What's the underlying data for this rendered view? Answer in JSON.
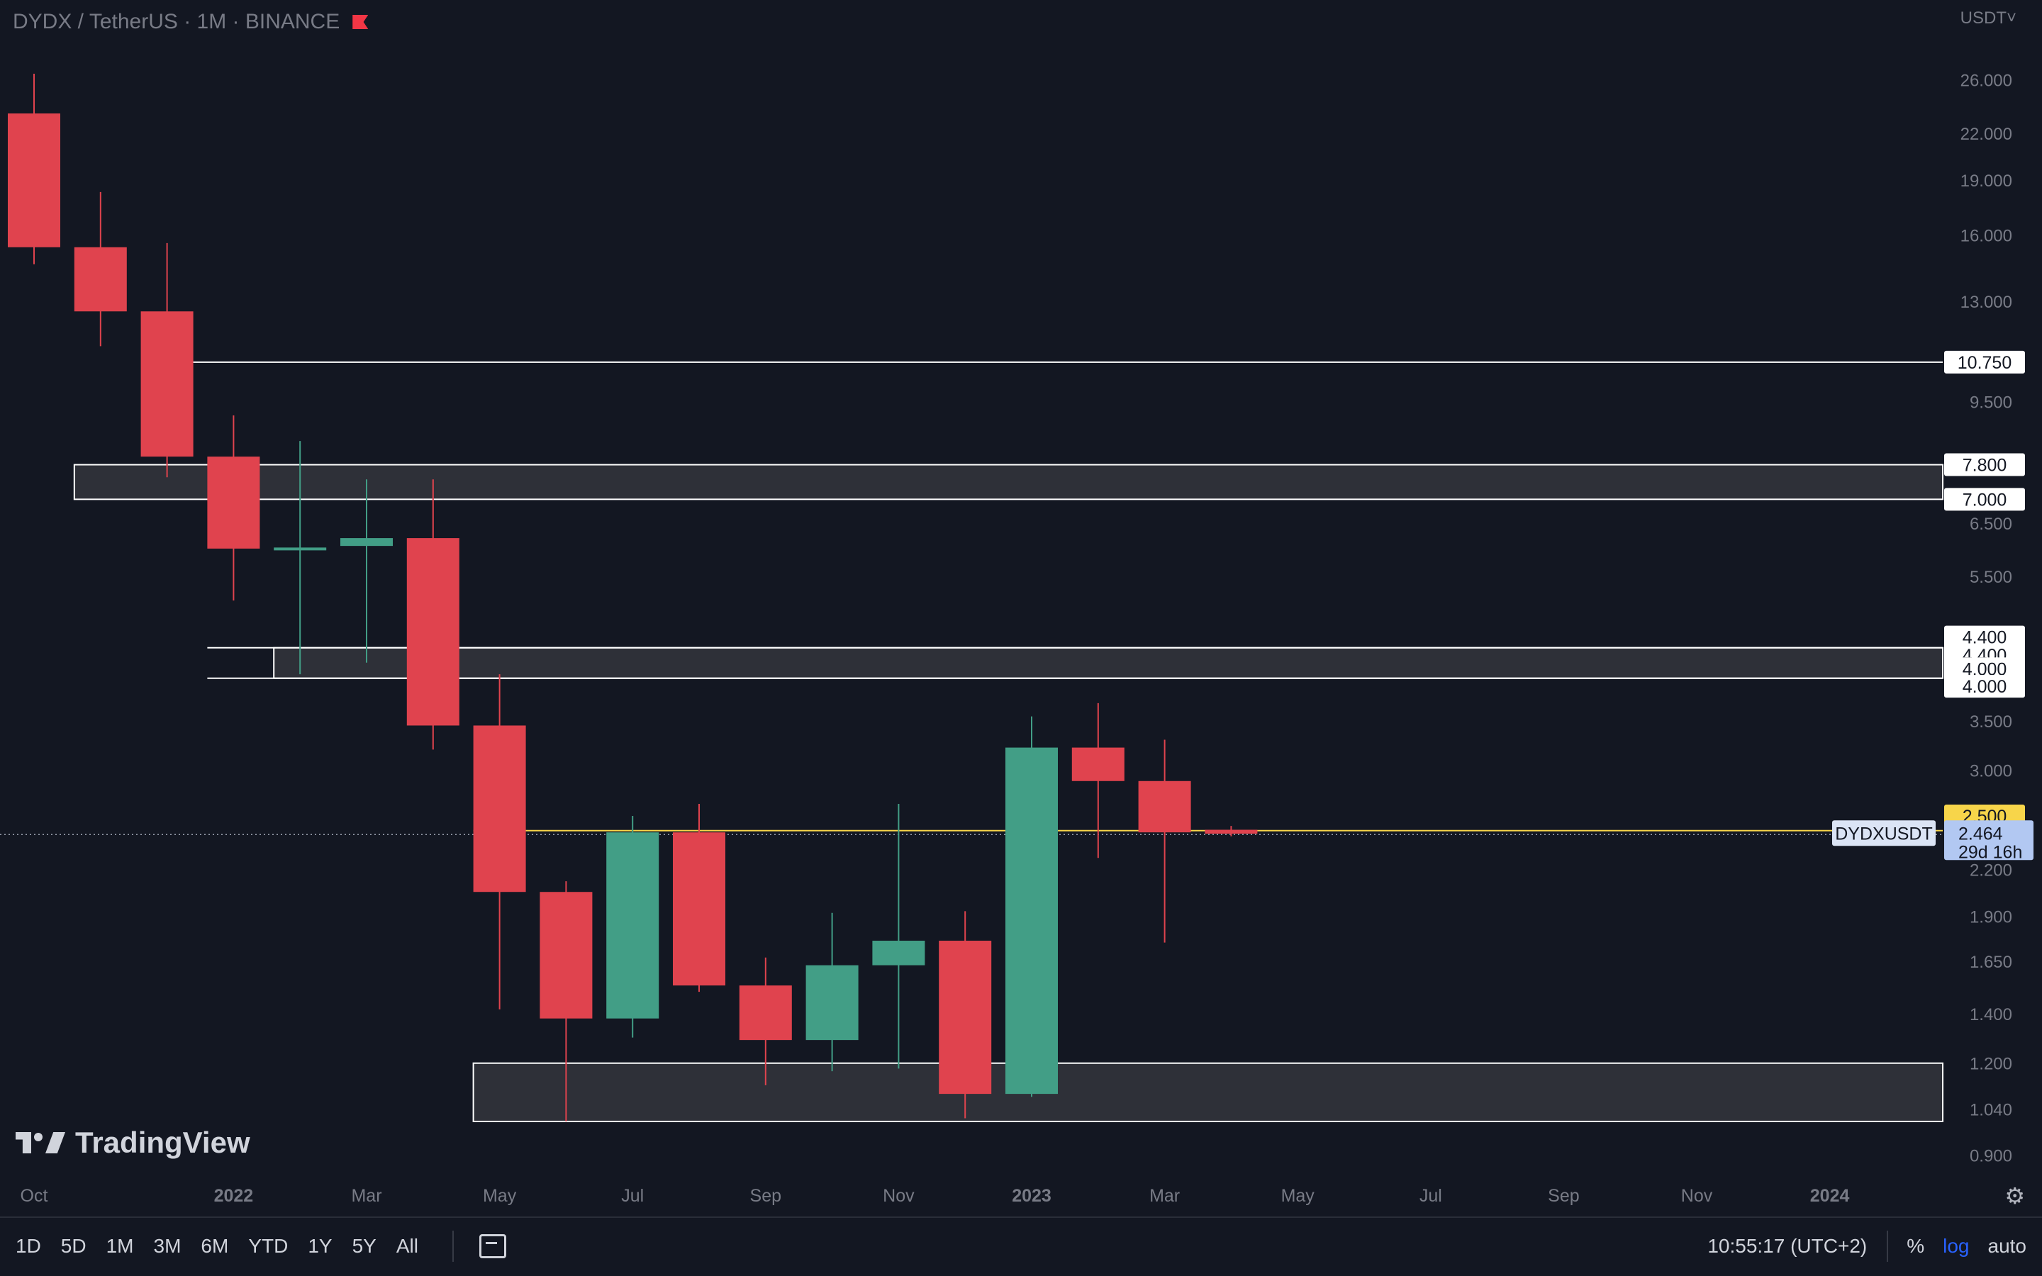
{
  "header": {
    "title": "DYDX / TetherUS · 1M · BINANCE",
    "currency": "USDT˅",
    "flag_color": "#f23645"
  },
  "logo": {
    "text": "TradingView"
  },
  "colors": {
    "up": "#429e86",
    "down": "#e0434e",
    "bg": "#131722",
    "zone": "#2e3038",
    "current": "#f7d54a"
  },
  "chart_data": {
    "type": "candlestick",
    "scale": "log",
    "ylim": [
      0.86,
      30
    ],
    "y_ticks": [
      26.0,
      22.0,
      19.0,
      16.0,
      13.0,
      9.5,
      6.5,
      5.5,
      3.5,
      3.0,
      2.2,
      1.9,
      1.65,
      1.4,
      1.2,
      1.04,
      0.9
    ],
    "y_tick_labels": [
      "26.000",
      "22.000",
      "19.000",
      "16.000",
      "13.000",
      "9.500",
      "6.500",
      "5.500",
      "3.500",
      "3.000",
      "2.200",
      "1.900",
      "1.650",
      "1.400",
      "1.200",
      "1.040",
      "0.900"
    ],
    "x_labels": [
      {
        "label": "Oct",
        "index": 0,
        "bold": false
      },
      {
        "label": "2022",
        "index": 3,
        "bold": true
      },
      {
        "label": "Mar",
        "index": 5,
        "bold": false
      },
      {
        "label": "May",
        "index": 7,
        "bold": false
      },
      {
        "label": "Jul",
        "index": 9,
        "bold": false
      },
      {
        "label": "Sep",
        "index": 11,
        "bold": false
      },
      {
        "label": "Nov",
        "index": 13,
        "bold": false
      },
      {
        "label": "2023",
        "index": 15,
        "bold": true
      },
      {
        "label": "Mar",
        "index": 17,
        "bold": false
      },
      {
        "label": "May",
        "index": 19,
        "bold": false
      },
      {
        "label": "Jul",
        "index": 21,
        "bold": false
      },
      {
        "label": "Sep",
        "index": 23,
        "bold": false
      },
      {
        "label": "Nov",
        "index": 25,
        "bold": false
      },
      {
        "label": "2024",
        "index": 27,
        "bold": true
      }
    ],
    "candles": [
      {
        "date": "2021-10",
        "open": 23.4,
        "high": 26.5,
        "low": 14.6,
        "close": 15.4
      },
      {
        "date": "2021-11",
        "open": 15.4,
        "high": 18.3,
        "low": 11.3,
        "close": 12.6
      },
      {
        "date": "2021-12",
        "open": 12.6,
        "high": 15.6,
        "low": 7.5,
        "close": 8.0
      },
      {
        "date": "2022-01",
        "open": 8.0,
        "high": 9.1,
        "low": 5.1,
        "close": 6.0
      },
      {
        "date": "2022-02",
        "open": 6.0,
        "high": 8.4,
        "low": 4.05,
        "close": 6.02
      },
      {
        "date": "2022-03",
        "open": 6.05,
        "high": 7.45,
        "low": 4.2,
        "close": 6.2
      },
      {
        "date": "2022-04",
        "open": 6.2,
        "high": 7.45,
        "low": 3.2,
        "close": 3.45
      },
      {
        "date": "2022-05",
        "open": 3.45,
        "high": 4.05,
        "low": 1.42,
        "close": 2.05
      },
      {
        "date": "2022-06",
        "open": 2.05,
        "high": 2.12,
        "low": 1.0,
        "close": 1.38
      },
      {
        "date": "2022-07",
        "open": 1.38,
        "high": 2.6,
        "low": 1.3,
        "close": 2.47
      },
      {
        "date": "2022-08",
        "open": 2.47,
        "high": 2.7,
        "low": 1.5,
        "close": 1.53
      },
      {
        "date": "2022-09",
        "open": 1.53,
        "high": 1.67,
        "low": 1.12,
        "close": 1.29
      },
      {
        "date": "2022-10",
        "open": 1.29,
        "high": 1.92,
        "low": 1.17,
        "close": 1.63
      },
      {
        "date": "2022-11",
        "open": 1.63,
        "high": 2.7,
        "low": 1.18,
        "close": 1.76
      },
      {
        "date": "2022-12",
        "open": 1.76,
        "high": 1.93,
        "low": 1.01,
        "close": 1.09
      },
      {
        "date": "2023-01",
        "open": 1.09,
        "high": 3.55,
        "low": 1.08,
        "close": 3.22
      },
      {
        "date": "2023-02",
        "open": 3.22,
        "high": 3.7,
        "low": 2.28,
        "close": 2.9
      },
      {
        "date": "2023-03",
        "open": 2.9,
        "high": 3.3,
        "low": 1.75,
        "close": 2.47
      },
      {
        "date": "2023-04",
        "open": 2.49,
        "high": 2.52,
        "low": 2.44,
        "close": 2.46
      }
    ],
    "zones": [
      {
        "top": 7.8,
        "bottom": 7.0,
        "start_index": 1.0
      },
      {
        "top": 4.4,
        "bottom": 4.0,
        "start_index": 4.0
      },
      {
        "top": 1.2,
        "bottom": 1.0,
        "start_index": 7.0
      }
    ],
    "levels": [
      {
        "value": 10.75,
        "label": "10.750",
        "start_index": 2.4
      },
      {
        "value": 4.4,
        "label": "4.400",
        "start_index": 3.0
      },
      {
        "value": 4.0,
        "label": "4.000",
        "start_index": 3.0
      }
    ],
    "level_labels": [
      {
        "value": 7.8,
        "label": "7.800"
      },
      {
        "value": 7.0,
        "label": "7.000"
      },
      {
        "value": 4.55,
        "label": "4.400"
      },
      {
        "value": 4.3,
        "label": "4.400"
      },
      {
        "value": 4.12,
        "label": "4.000"
      },
      {
        "value": 3.9,
        "label": "4.000"
      }
    ],
    "alert_line": {
      "value": 2.5,
      "label": "2.500"
    },
    "current_price": {
      "value": 2.464,
      "label": "2.464",
      "countdown": "29d 16h",
      "symbol": "DYDXUSDT"
    }
  },
  "toolbar": {
    "timeframes": [
      "1D",
      "5D",
      "1M",
      "3M",
      "6M",
      "YTD",
      "1Y",
      "5Y",
      "All"
    ],
    "time": "10:55:17 (UTC+2)",
    "percent": "%",
    "log": "log",
    "auto": "auto"
  }
}
